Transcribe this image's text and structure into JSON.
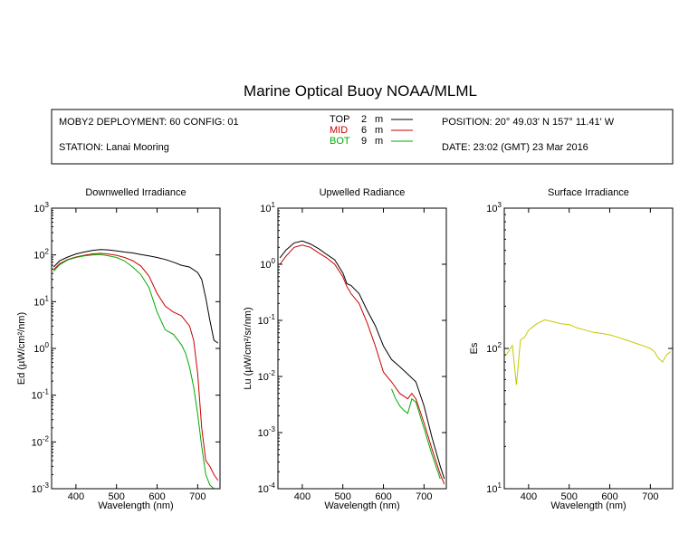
{
  "header": {
    "title": "Marine Optical Buoy NOAA/MLML",
    "deployment": "MOBY2 DEPLOYMENT: 60 CONFIG: 01",
    "station": "STATION: Lanai Mooring",
    "position": "POSITION: 20° 49.03' N   157° 11.41' W",
    "date": "DATE: 23:02 (GMT) 23 Mar 2016"
  },
  "legend": [
    {
      "name": "TOP",
      "depth": "2",
      "unit": "m",
      "color": "#000000"
    },
    {
      "name": "MID",
      "depth": "6",
      "unit": "m",
      "color": "#cc0000"
    },
    {
      "name": "BOT",
      "depth": "9",
      "unit": "m",
      "color": "#00aa00"
    }
  ],
  "chart_data": [
    {
      "type": "line",
      "title": "Downwelled Irradiance",
      "xlabel": "Wavelength (nm)",
      "ylabel": "Ed (µW/cm²/nm)",
      "yscale": "log",
      "xlim": [
        340,
        755
      ],
      "ylim": [
        0.001,
        1000
      ],
      "xticks": [
        "400",
        "500",
        "600",
        "700"
      ],
      "yticks": [
        "10^-3",
        "10^-2",
        "10^-1",
        "10^0",
        "10^1",
        "10^2",
        "10^3"
      ],
      "series": [
        {
          "name": "TOP",
          "color": "#000000",
          "x": [
            345,
            360,
            380,
            400,
            420,
            440,
            460,
            480,
            500,
            520,
            540,
            560,
            580,
            600,
            620,
            640,
            660,
            680,
            700,
            710,
            720,
            730,
            740,
            750
          ],
          "y": [
            55,
            75,
            90,
            105,
            115,
            125,
            130,
            128,
            122,
            115,
            110,
            102,
            95,
            88,
            80,
            70,
            60,
            55,
            42,
            30,
            12,
            4,
            1.5,
            1.3
          ]
        },
        {
          "name": "MID",
          "color": "#cc0000",
          "x": [
            345,
            360,
            380,
            400,
            420,
            440,
            460,
            480,
            500,
            520,
            540,
            560,
            580,
            600,
            620,
            640,
            660,
            680,
            690,
            700,
            710,
            720,
            730,
            740,
            750
          ],
          "y": [
            48,
            65,
            80,
            90,
            98,
            105,
            108,
            104,
            98,
            88,
            75,
            58,
            35,
            15,
            8,
            6,
            5,
            3,
            1.5,
            0.3,
            0.02,
            0.004,
            0.003,
            0.002,
            0.0015
          ]
        },
        {
          "name": "BOT",
          "color": "#00aa00",
          "x": [
            345,
            360,
            380,
            400,
            420,
            440,
            460,
            480,
            500,
            520,
            540,
            560,
            580,
            600,
            620,
            640,
            660,
            670,
            680,
            690,
            700,
            710,
            720,
            730,
            740
          ],
          "y": [
            45,
            62,
            78,
            88,
            95,
            100,
            102,
            96,
            88,
            74,
            55,
            38,
            20,
            6,
            2.5,
            2,
            1.2,
            0.8,
            0.4,
            0.15,
            0.04,
            0.008,
            0.002,
            0.0012,
            0.001
          ]
        }
      ]
    },
    {
      "type": "line",
      "title": "Upwelled Radiance",
      "xlabel": "Wavelength (nm)",
      "ylabel": "Lu (µW/cm²/sr/nm)",
      "yscale": "log",
      "xlim": [
        340,
        755
      ],
      "ylim": [
        0.0001,
        10
      ],
      "xticks": [
        "400",
        "500",
        "600",
        "700"
      ],
      "yticks": [
        "10^-4",
        "10^-3",
        "10^-2",
        "10^-1",
        "10^0",
        "10^1"
      ],
      "series": [
        {
          "name": "TOP",
          "color": "#000000",
          "x": [
            345,
            360,
            380,
            400,
            420,
            440,
            460,
            480,
            500,
            510,
            520,
            540,
            560,
            580,
            600,
            620,
            640,
            660,
            680,
            700,
            720,
            740,
            750
          ],
          "y": [
            1.3,
            1.8,
            2.4,
            2.6,
            2.3,
            1.9,
            1.5,
            1.2,
            0.7,
            0.45,
            0.42,
            0.3,
            0.15,
            0.08,
            0.035,
            0.02,
            0.015,
            0.011,
            0.008,
            0.003,
            0.0008,
            0.00025,
            0.00015
          ]
        },
        {
          "name": "MID",
          "color": "#cc0000",
          "x": [
            345,
            360,
            380,
            400,
            420,
            440,
            460,
            480,
            500,
            510,
            520,
            540,
            560,
            580,
            600,
            620,
            640,
            660,
            670,
            680,
            700,
            720,
            740,
            750
          ],
          "y": [
            1.0,
            1.4,
            2.0,
            2.2,
            2.0,
            1.6,
            1.3,
            1.0,
            0.6,
            0.4,
            0.3,
            0.2,
            0.09,
            0.035,
            0.012,
            0.008,
            0.005,
            0.004,
            0.005,
            0.004,
            0.0015,
            0.0005,
            0.00018,
            0.00012
          ]
        },
        {
          "name": "BOT",
          "color": "#00aa00",
          "x": [
            620,
            630,
            640,
            650,
            660,
            670,
            680,
            700,
            720,
            740
          ],
          "y": [
            0.006,
            0.004,
            0.003,
            0.0025,
            0.0022,
            0.004,
            0.0035,
            0.0012,
            0.0004,
            0.00015
          ]
        }
      ]
    },
    {
      "type": "line",
      "title": "Surface Irradiance",
      "xlabel": "Wavelength (nm)",
      "ylabel": "Es",
      "yscale": "log",
      "xlim": [
        340,
        755
      ],
      "ylim": [
        10,
        1000
      ],
      "xticks": [
        "400",
        "500",
        "600",
        "700"
      ],
      "yticks": [
        "10^1",
        "10^2",
        "10^3"
      ],
      "series": [
        {
          "color": "#c8c800",
          "x": [
            345,
            360,
            370,
            380,
            390,
            400,
            420,
            440,
            460,
            480,
            500,
            520,
            540,
            560,
            580,
            600,
            620,
            640,
            660,
            680,
            700,
            710,
            720,
            730,
            740,
            750
          ],
          "y": [
            90,
            105,
            55,
            115,
            120,
            135,
            150,
            160,
            155,
            150,
            148,
            140,
            135,
            130,
            128,
            125,
            120,
            115,
            110,
            105,
            100,
            95,
            85,
            80,
            90,
            95
          ]
        }
      ]
    }
  ]
}
